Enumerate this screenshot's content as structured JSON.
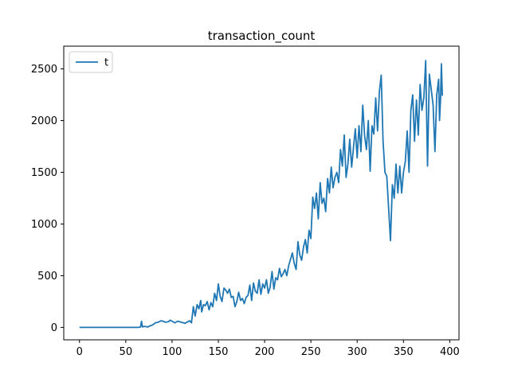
{
  "chart_data": {
    "type": "line",
    "title": "transaction_count",
    "xlabel": "",
    "ylabel": "",
    "xlim": [
      -17,
      410
    ],
    "ylim": [
      -120,
      2720
    ],
    "x_ticks": [
      0,
      50,
      100,
      150,
      200,
      250,
      300,
      350,
      400
    ],
    "y_ticks": [
      0,
      500,
      1000,
      1500,
      2000,
      2500
    ],
    "grid": false,
    "legend": {
      "placement": "top-left",
      "entries": [
        "t"
      ]
    },
    "series": [
      {
        "name": "t",
        "color": "#1f77b4",
        "points": [
          [
            0,
            0
          ],
          [
            10,
            0
          ],
          [
            20,
            0
          ],
          [
            30,
            0
          ],
          [
            40,
            0
          ],
          [
            50,
            0
          ],
          [
            60,
            0
          ],
          [
            64,
            0
          ],
          [
            66,
            5
          ],
          [
            67,
            60
          ],
          [
            68,
            5
          ],
          [
            70,
            10
          ],
          [
            74,
            5
          ],
          [
            76,
            15
          ],
          [
            78,
            20
          ],
          [
            80,
            30
          ],
          [
            82,
            45
          ],
          [
            85,
            50
          ],
          [
            88,
            65
          ],
          [
            90,
            60
          ],
          [
            93,
            50
          ],
          [
            96,
            55
          ],
          [
            98,
            70
          ],
          [
            100,
            60
          ],
          [
            103,
            45
          ],
          [
            106,
            60
          ],
          [
            110,
            50
          ],
          [
            114,
            40
          ],
          [
            117,
            55
          ],
          [
            119,
            65
          ],
          [
            121,
            45
          ],
          [
            123,
            200
          ],
          [
            125,
            110
          ],
          [
            127,
            220
          ],
          [
            129,
            180
          ],
          [
            131,
            260
          ],
          [
            132,
            150
          ],
          [
            134,
            220
          ],
          [
            136,
            210
          ],
          [
            138,
            250
          ],
          [
            140,
            170
          ],
          [
            142,
            240
          ],
          [
            144,
            200
          ],
          [
            146,
            330
          ],
          [
            148,
            260
          ],
          [
            150,
            420
          ],
          [
            152,
            300
          ],
          [
            154,
            250
          ],
          [
            156,
            380
          ],
          [
            158,
            360
          ],
          [
            160,
            330
          ],
          [
            162,
            370
          ],
          [
            164,
            290
          ],
          [
            166,
            300
          ],
          [
            168,
            200
          ],
          [
            170,
            250
          ],
          [
            172,
            340
          ],
          [
            174,
            260
          ],
          [
            176,
            280
          ],
          [
            178,
            230
          ],
          [
            180,
            290
          ],
          [
            182,
            310
          ],
          [
            184,
            410
          ],
          [
            186,
            260
          ],
          [
            188,
            430
          ],
          [
            190,
            350
          ],
          [
            192,
            330
          ],
          [
            194,
            460
          ],
          [
            196,
            320
          ],
          [
            198,
            420
          ],
          [
            200,
            380
          ],
          [
            202,
            460
          ],
          [
            204,
            330
          ],
          [
            206,
            390
          ],
          [
            208,
            540
          ],
          [
            210,
            370
          ],
          [
            212,
            480
          ],
          [
            214,
            460
          ],
          [
            216,
            570
          ],
          [
            218,
            490
          ],
          [
            220,
            520
          ],
          [
            222,
            560
          ],
          [
            224,
            500
          ],
          [
            226,
            600
          ],
          [
            228,
            660
          ],
          [
            230,
            720
          ],
          [
            232,
            620
          ],
          [
            234,
            560
          ],
          [
            236,
            830
          ],
          [
            238,
            700
          ],
          [
            240,
            650
          ],
          [
            242,
            780
          ],
          [
            244,
            850
          ],
          [
            246,
            720
          ],
          [
            248,
            940
          ],
          [
            250,
            860
          ],
          [
            252,
            1260
          ],
          [
            254,
            1150
          ],
          [
            256,
            1300
          ],
          [
            258,
            1050
          ],
          [
            260,
            1400
          ],
          [
            262,
            1200
          ],
          [
            264,
            1250
          ],
          [
            266,
            1120
          ],
          [
            268,
            1440
          ],
          [
            270,
            1300
          ],
          [
            272,
            1550
          ],
          [
            274,
            1350
          ],
          [
            276,
            1450
          ],
          [
            278,
            1500
          ],
          [
            280,
            1400
          ],
          [
            282,
            1720
          ],
          [
            284,
            1560
          ],
          [
            286,
            1860
          ],
          [
            288,
            1450
          ],
          [
            290,
            1580
          ],
          [
            292,
            1820
          ],
          [
            294,
            1550
          ],
          [
            296,
            1740
          ],
          [
            298,
            1920
          ],
          [
            300,
            1640
          ],
          [
            302,
            1950
          ],
          [
            304,
            1700
          ],
          [
            306,
            2150
          ],
          [
            308,
            1860
          ],
          [
            310,
            1720
          ],
          [
            312,
            2000
          ],
          [
            314,
            1510
          ],
          [
            316,
            1950
          ],
          [
            318,
            1870
          ],
          [
            320,
            2220
          ],
          [
            322,
            1900
          ],
          [
            324,
            2280
          ],
          [
            326,
            2440
          ],
          [
            328,
            1800
          ],
          [
            330,
            1500
          ],
          [
            332,
            1460
          ],
          [
            334,
            1150
          ],
          [
            336,
            840
          ],
          [
            338,
            1380
          ],
          [
            340,
            1250
          ],
          [
            342,
            1580
          ],
          [
            344,
            1300
          ],
          [
            346,
            1560
          ],
          [
            348,
            1300
          ],
          [
            350,
            1500
          ],
          [
            352,
            1600
          ],
          [
            354,
            1900
          ],
          [
            356,
            1500
          ],
          [
            358,
            2100
          ],
          [
            360,
            2250
          ],
          [
            362,
            1800
          ],
          [
            364,
            2200
          ],
          [
            366,
            1860
          ],
          [
            368,
            2350
          ],
          [
            370,
            2100
          ],
          [
            372,
            2220
          ],
          [
            374,
            2580
          ],
          [
            376,
            1560
          ],
          [
            378,
            2450
          ],
          [
            380,
            2300
          ],
          [
            382,
            2150
          ],
          [
            384,
            1700
          ],
          [
            386,
            2250
          ],
          [
            388,
            2400
          ],
          [
            389,
            2000
          ],
          [
            390,
            2200
          ],
          [
            391,
            2550
          ],
          [
            392,
            2240
          ]
        ]
      }
    ]
  }
}
